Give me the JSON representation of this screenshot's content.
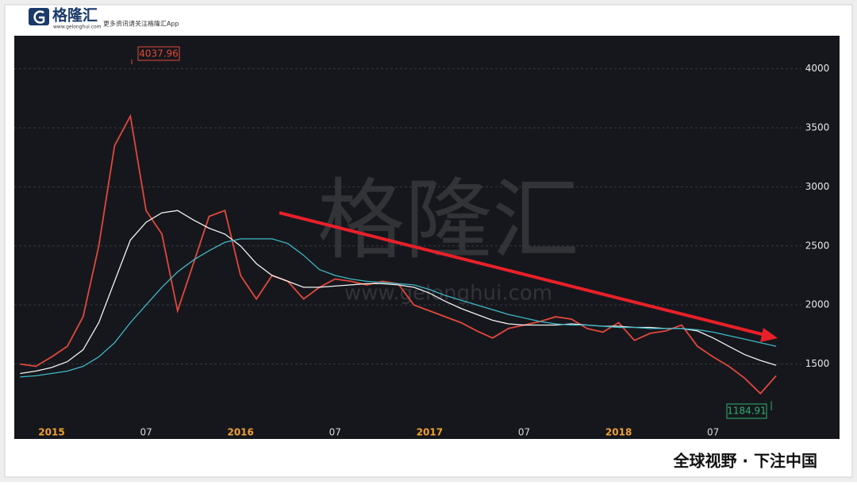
{
  "header": {
    "logo": "格隆汇",
    "url": "www.gelonghui.com",
    "slogan": "更多资讯请关注格隆汇App"
  },
  "watermark": {
    "name": "格隆汇",
    "url": "www.gelonghui.com"
  },
  "footer": "全球视野 · 下注中国",
  "chart_data": {
    "type": "line",
    "categories": [
      null,
      null,
      "2015",
      null,
      null,
      null,
      null,
      null,
      "07",
      null,
      null,
      null,
      null,
      null,
      "2016",
      null,
      null,
      null,
      null,
      null,
      "07",
      null,
      null,
      null,
      null,
      null,
      "2017",
      null,
      null,
      null,
      null,
      null,
      "07",
      null,
      null,
      null,
      null,
      null,
      "2018",
      null,
      null,
      null,
      null,
      null,
      "07",
      null,
      null,
      null,
      null
    ],
    "series": [
      {
        "color": "#e0483c",
        "values": [
          1500,
          1480,
          1560,
          1650,
          1900,
          2500,
          3350,
          3600,
          2800,
          2600,
          1950,
          2350,
          2750,
          2800,
          2250,
          2050,
          2250,
          2200,
          2050,
          2150,
          2220,
          2200,
          2170,
          2200,
          2180,
          2000,
          1950,
          1900,
          1850,
          1780,
          1720,
          1800,
          1830,
          1860,
          1900,
          1880,
          1800,
          1770,
          1850,
          1700,
          1760,
          1780,
          1830,
          1650,
          1560,
          1480,
          1380,
          1250,
          1400
        ]
      },
      {
        "color": "#f2f2f2",
        "values": [
          1420,
          1440,
          1470,
          1520,
          1620,
          1850,
          2200,
          2550,
          2700,
          2780,
          2800,
          2720,
          2650,
          2600,
          2500,
          2350,
          2250,
          2200,
          2150,
          2150,
          2160,
          2170,
          2180,
          2180,
          2170,
          2150,
          2100,
          2030,
          1970,
          1920,
          1870,
          1840,
          1830,
          1830,
          1830,
          1840,
          1830,
          1820,
          1820,
          1810,
          1810,
          1800,
          1800,
          1780,
          1720,
          1650,
          1580,
          1530,
          1490
        ]
      },
      {
        "color": "#3fb8c8",
        "values": [
          1390,
          1400,
          1420,
          1440,
          1480,
          1560,
          1680,
          1850,
          2000,
          2150,
          2280,
          2380,
          2460,
          2530,
          2560,
          2560,
          2560,
          2520,
          2420,
          2300,
          2250,
          2220,
          2200,
          2190,
          2180,
          2170,
          2130,
          2080,
          2040,
          2000,
          1960,
          1920,
          1890,
          1860,
          1840,
          1830,
          1830,
          1820,
          1810,
          1810,
          1800,
          1800,
          1800,
          1790,
          1770,
          1740,
          1710,
          1680,
          1650
        ]
      }
    ],
    "high": 4037.96,
    "low": 1184.91,
    "ylim": [
      1040,
      4280
    ],
    "yticks": [
      1500,
      2000,
      2500,
      3000,
      3500,
      4000
    ],
    "grid": true
  }
}
